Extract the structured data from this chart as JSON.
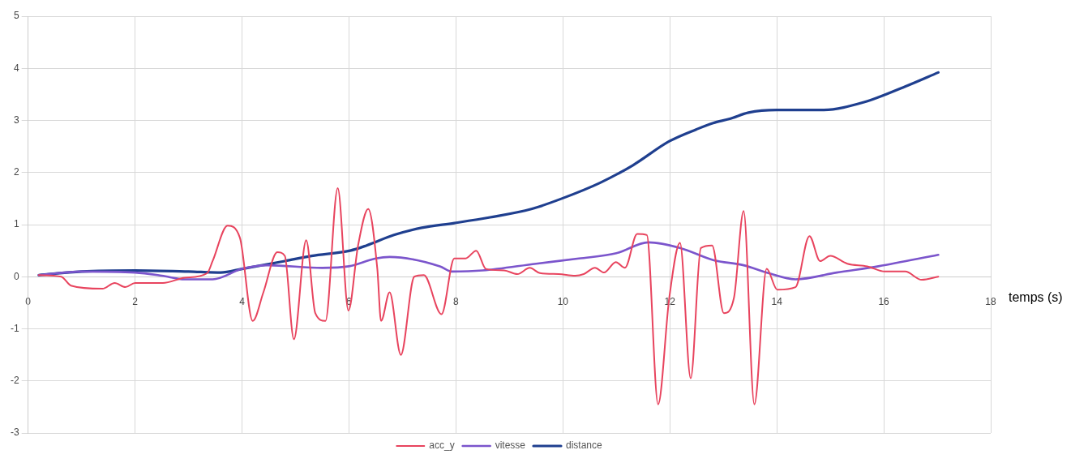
{
  "chart_data": {
    "type": "line",
    "xlabel": "temps (s)",
    "xlim": [
      0,
      18
    ],
    "xticks": [
      0,
      2,
      4,
      6,
      8,
      10,
      12,
      14,
      16,
      18
    ],
    "ylim": [
      -3,
      5
    ],
    "yticks": [
      -3,
      -2,
      -1,
      0,
      1,
      2,
      3,
      4,
      5
    ],
    "grid": true,
    "legend": "bottom",
    "marker": "none",
    "line_style": "solid",
    "series": [
      {
        "name": "acc_y",
        "color": "#e8445e",
        "x": [
          0.2,
          0.62,
          0.8,
          1.39,
          1.62,
          1.82,
          2.0,
          2.52,
          2.93,
          3.35,
          3.45,
          3.73,
          3.96,
          4.2,
          4.4,
          4.66,
          4.8,
          4.97,
          5.2,
          5.37,
          5.56,
          5.79,
          5.99,
          6.17,
          6.36,
          6.53,
          6.6,
          6.76,
          6.97,
          7.22,
          7.4,
          7.73,
          7.97,
          8.18,
          8.38,
          8.56,
          8.9,
          9.15,
          9.38,
          9.57,
          9.92,
          10.23,
          10.39,
          10.6,
          10.77,
          10.99,
          11.16,
          11.39,
          11.57,
          11.78,
          11.99,
          12.19,
          12.39,
          12.58,
          12.79,
          13.01,
          13.2,
          13.38,
          13.58,
          13.81,
          14.01,
          14.35,
          14.61,
          14.81,
          15.0,
          15.32,
          15.69,
          16.02,
          16.4,
          16.71,
          17.02
        ],
        "values": [
          0.03,
          0.0,
          -0.17,
          -0.23,
          -0.12,
          -0.2,
          -0.12,
          -0.12,
          -0.02,
          0.07,
          0.3,
          0.98,
          0.75,
          -0.85,
          -0.3,
          0.47,
          0.4,
          -1.2,
          0.7,
          -0.7,
          -0.85,
          1.7,
          -0.65,
          0.6,
          1.3,
          0.15,
          -0.85,
          -0.3,
          -1.5,
          0.0,
          0.03,
          -0.72,
          0.35,
          0.35,
          0.5,
          0.15,
          0.12,
          0.05,
          0.17,
          0.07,
          0.05,
          0.02,
          0.05,
          0.17,
          0.08,
          0.28,
          0.17,
          0.82,
          0.8,
          -2.45,
          -0.4,
          0.65,
          -1.95,
          0.55,
          0.6,
          -0.7,
          -0.4,
          1.26,
          -2.45,
          0.15,
          -0.25,
          -0.2,
          0.78,
          0.3,
          0.4,
          0.25,
          0.2,
          0.1,
          0.1,
          -0.06,
          0.0
        ]
      },
      {
        "name": "vitesse",
        "color": "#7b55cc",
        "x": [
          0.2,
          1.0,
          2.0,
          2.5,
          2.93,
          3.45,
          4.0,
          4.48,
          5.5,
          6.0,
          6.5,
          6.76,
          7.7,
          7.92,
          8.5,
          9.5,
          10.3,
          11.0,
          11.6,
          12.2,
          12.81,
          13.38,
          13.84,
          14.35,
          15.12,
          15.9,
          17.02
        ],
        "values": [
          0.03,
          0.1,
          0.08,
          0.02,
          -0.05,
          -0.05,
          0.15,
          0.22,
          0.17,
          0.2,
          0.35,
          0.38,
          0.2,
          0.1,
          0.12,
          0.25,
          0.35,
          0.45,
          0.66,
          0.55,
          0.32,
          0.22,
          0.07,
          -0.05,
          0.08,
          0.2,
          0.42
        ]
      },
      {
        "name": "distance",
        "color": "#1f3f8f",
        "x": [
          0.2,
          1.0,
          2.0,
          3.0,
          3.6,
          4.0,
          4.8,
          5.3,
          6.02,
          6.33,
          6.84,
          7.36,
          7.97,
          8.64,
          9.41,
          9.98,
          10.69,
          11.31,
          11.99,
          12.5,
          12.81,
          13.12,
          13.47,
          14.0,
          14.86,
          15.63,
          16.4,
          17.02
        ],
        "values": [
          0.03,
          0.1,
          0.12,
          0.1,
          0.08,
          0.15,
          0.3,
          0.4,
          0.5,
          0.6,
          0.8,
          0.94,
          1.03,
          1.14,
          1.3,
          1.5,
          1.8,
          2.14,
          2.6,
          2.83,
          2.95,
          3.03,
          3.15,
          3.2,
          3.2,
          3.35,
          3.65,
          3.92
        ]
      }
    ]
  }
}
